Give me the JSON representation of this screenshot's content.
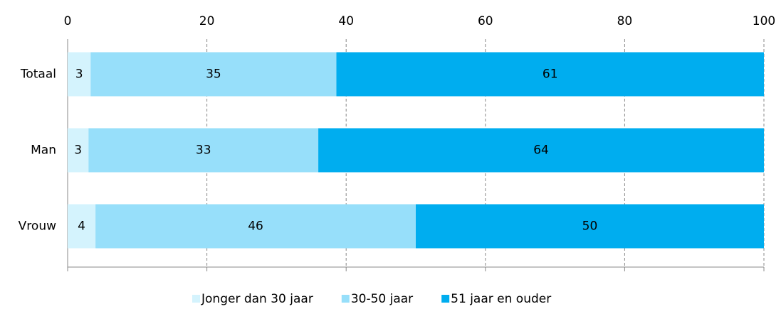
{
  "chart_data": {
    "type": "stacked_bar_horizontal",
    "categories": [
      "Totaal",
      "Man",
      "Vrouw"
    ],
    "series": [
      {
        "name": "Jonger dan 30 jaar",
        "color": "#d4f3fd",
        "values": [
          3.3,
          3.0,
          4.0
        ],
        "value_labels": [
          "3",
          "3",
          "4"
        ]
      },
      {
        "name": "30-50 jaar",
        "color": "#97dffa",
        "values": [
          35.3,
          33.0,
          46.0
        ],
        "value_labels": [
          "35",
          "33",
          "46"
        ]
      },
      {
        "name": "51 jaar en ouder",
        "color": "#00adef",
        "values": [
          61.4,
          64.0,
          50.0
        ],
        "value_labels": [
          "61",
          "64",
          "50"
        ]
      }
    ],
    "xlim": [
      0,
      100
    ],
    "xticks": [
      0,
      20,
      40,
      60,
      80,
      100
    ],
    "grid": true,
    "legend": "bottom"
  }
}
